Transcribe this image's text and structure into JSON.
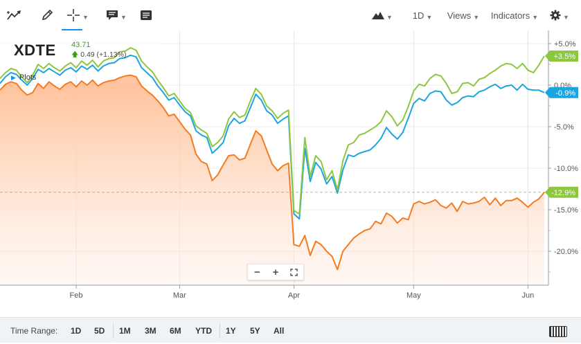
{
  "toolbar": {
    "left_icons": [
      "line-draw-icon",
      "pencil-icon",
      "crosshair-icon",
      "comment-icon",
      "news-icon"
    ],
    "chart_type_icon": "mountain-chart-icon",
    "interval": "1D",
    "views": "Views",
    "indicators": "Indicators",
    "settings_icon": "gear-icon",
    "active_color": "#188fff"
  },
  "symbol": {
    "ticker": "XDTE",
    "price": "43.71",
    "change": "0.49 (+1.13%)"
  },
  "plots_label": "Plots",
  "zoom": {
    "minus": "−",
    "plus": "+",
    "fullscreen": "⛶"
  },
  "range_bar": {
    "label": "Time Range:",
    "items": [
      "1D",
      "5D",
      "1M",
      "3M",
      "6M",
      "YTD",
      "1Y",
      "5Y",
      "All"
    ]
  },
  "chart_data": {
    "type": "line",
    "y_unit": "%",
    "ylim": [
      -24,
      6
    ],
    "y_ticks": [
      5,
      0,
      -5,
      -10,
      -15,
      -20
    ],
    "y_tick_labels": [
      "+5.0%",
      "0.0%",
      "-5.0%",
      "-10.0%",
      "-15.0%",
      "-20.0%"
    ],
    "x_tick_labels": [
      "Feb",
      "Mar",
      "Apr",
      "May",
      "Jun"
    ],
    "x_tick_index": [
      14,
      33,
      54,
      76,
      97
    ],
    "grid": true,
    "series": [
      {
        "color": "#8dc63f",
        "end_label": "+3.5%",
        "values": [
          0.8,
          1.5,
          2.0,
          1.8,
          1.0,
          0.3,
          1.2,
          2.5,
          2.0,
          2.6,
          2.1,
          1.7,
          2.3,
          2.7,
          2.1,
          2.9,
          2.4,
          3.0,
          2.2,
          2.9,
          3.2,
          3.3,
          4.0,
          4.1,
          4.5,
          4.2,
          2.9,
          2.2,
          1.6,
          0.6,
          -0.3,
          -1.3,
          -1.0,
          -1.9,
          -2.8,
          -3.3,
          -4.9,
          -5.4,
          -5.8,
          -7.4,
          -6.9,
          -6.1,
          -4.1,
          -3.2,
          -3.9,
          -3.6,
          -1.9,
          -0.4,
          -1.1,
          -2.5,
          -3.1,
          -4.0,
          -3.4,
          -3.0,
          -15.1,
          -15.5,
          -6.3,
          -11.0,
          -8.5,
          -9.2,
          -11.4,
          -10.3,
          -12.6,
          -9.1,
          -7.2,
          -6.9,
          -6.0,
          -5.8,
          -5.4,
          -5.0,
          -4.4,
          -3.1,
          -3.8,
          -4.9,
          -4.2,
          -2.6,
          -0.7,
          0.1,
          -0.1,
          0.8,
          1.3,
          1.1,
          0.2,
          -1.0,
          -0.8,
          0.2,
          0.3,
          -0.1,
          0.7,
          0.9,
          1.4,
          1.8,
          2.3,
          2.6,
          2.5,
          2.0,
          2.6,
          1.8,
          1.5,
          2.4,
          3.5
        ]
      },
      {
        "color": "#1aa5e0",
        "end_label": "-0.9%",
        "values": [
          0.2,
          1.0,
          1.5,
          1.3,
          0.6,
          0.0,
          0.8,
          1.9,
          1.5,
          2.0,
          1.6,
          1.2,
          1.8,
          2.1,
          1.6,
          2.3,
          1.9,
          2.4,
          1.7,
          2.3,
          2.6,
          2.7,
          3.2,
          3.3,
          3.6,
          3.4,
          2.1,
          1.5,
          0.9,
          -0.1,
          -0.9,
          -1.8,
          -1.5,
          -2.4,
          -3.2,
          -3.7,
          -5.5,
          -6.0,
          -6.3,
          -8.2,
          -7.6,
          -6.9,
          -4.9,
          -4.0,
          -4.6,
          -4.3,
          -2.7,
          -1.1,
          -1.8,
          -3.1,
          -3.6,
          -4.6,
          -4.1,
          -3.7,
          -15.5,
          -16.1,
          -7.6,
          -11.6,
          -9.3,
          -10.1,
          -11.9,
          -11.0,
          -13.0,
          -10.2,
          -8.4,
          -8.6,
          -8.2,
          -8.0,
          -7.8,
          -7.2,
          -6.4,
          -5.1,
          -5.9,
          -6.5,
          -5.7,
          -4.0,
          -2.2,
          -1.6,
          -1.9,
          -1.0,
          -0.7,
          -0.8,
          -1.8,
          -2.4,
          -2.1,
          -1.5,
          -1.3,
          -1.4,
          -0.8,
          -0.6,
          -0.2,
          0.1,
          -0.4,
          -0.1,
          0.0,
          -0.6,
          0.1,
          -0.5,
          -0.6,
          -0.6,
          -0.9
        ]
      },
      {
        "color": "#f47b20",
        "end_label": "-12.9%",
        "fill": "#ffcaa6",
        "values": [
          -0.6,
          0.1,
          0.4,
          0.2,
          -0.6,
          -1.2,
          -0.9,
          0.2,
          -0.4,
          0.4,
          -0.1,
          -0.5,
          0.1,
          0.4,
          -0.2,
          0.5,
          0.0,
          0.6,
          -0.1,
          0.3,
          0.5,
          0.6,
          0.9,
          1.1,
          1.2,
          1.0,
          -0.1,
          -0.7,
          -1.2,
          -1.9,
          -2.7,
          -3.7,
          -3.5,
          -4.4,
          -5.3,
          -6.0,
          -8.3,
          -9.2,
          -9.5,
          -11.5,
          -10.8,
          -9.6,
          -8.5,
          -8.4,
          -9.0,
          -8.8,
          -7.1,
          -5.5,
          -6.1,
          -7.8,
          -9.5,
          -10.3,
          -9.7,
          -9.4,
          -19.2,
          -19.4,
          -18.1,
          -20.5,
          -18.8,
          -19.2,
          -20.0,
          -20.6,
          -22.2,
          -20.0,
          -19.2,
          -18.4,
          -17.9,
          -17.5,
          -17.3,
          -16.4,
          -16.7,
          -15.4,
          -15.8,
          -16.6,
          -16.0,
          -16.2,
          -14.3,
          -14.0,
          -14.3,
          -14.1,
          -13.8,
          -14.5,
          -14.8,
          -14.2,
          -15.2,
          -14.0,
          -14.3,
          -14.2,
          -14.0,
          -13.5,
          -14.4,
          -13.6,
          -14.5,
          -13.9,
          -13.9,
          -13.6,
          -14.1,
          -14.7,
          -14.1,
          -13.7,
          -12.9
        ]
      }
    ]
  }
}
